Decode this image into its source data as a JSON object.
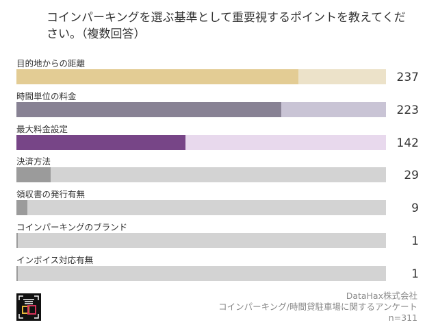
{
  "chart_data": {
    "type": "bar",
    "orientation": "horizontal",
    "title": "コインパーキングを選ぶ基準として重要視するポイントを教えてください。（複数回答）",
    "categories": [
      "目的地からの距離",
      "時間単位の料金",
      "最大料金設定",
      "決済方法",
      "領収書の発行有無",
      "コインパーキングのブランド",
      "インボイス対応有無"
    ],
    "values": [
      237,
      223,
      142,
      29,
      9,
      1,
      1
    ],
    "max": 311,
    "grid": false,
    "colors": [
      {
        "fill": "#e3cc94",
        "track": "#ece2c9"
      },
      {
        "fill": "#888294",
        "track": "#c9c4d5"
      },
      {
        "fill": "#774587",
        "track": "#e8d9ed"
      },
      {
        "fill": "#9b9b9b",
        "track": "#d3d3d3"
      },
      {
        "fill": "#9b9b9b",
        "track": "#d3d3d3"
      },
      {
        "fill": "#9b9b9b",
        "track": "#d3d3d3"
      },
      {
        "fill": "#9b9b9b",
        "track": "#d3d3d3"
      }
    ]
  },
  "footer": {
    "company": "DataHax株式会社",
    "survey": "コインパーキング/時間貸駐車場に関するアンケート",
    "n": "n=311"
  },
  "logo": {
    "name": "datahax-logo"
  }
}
